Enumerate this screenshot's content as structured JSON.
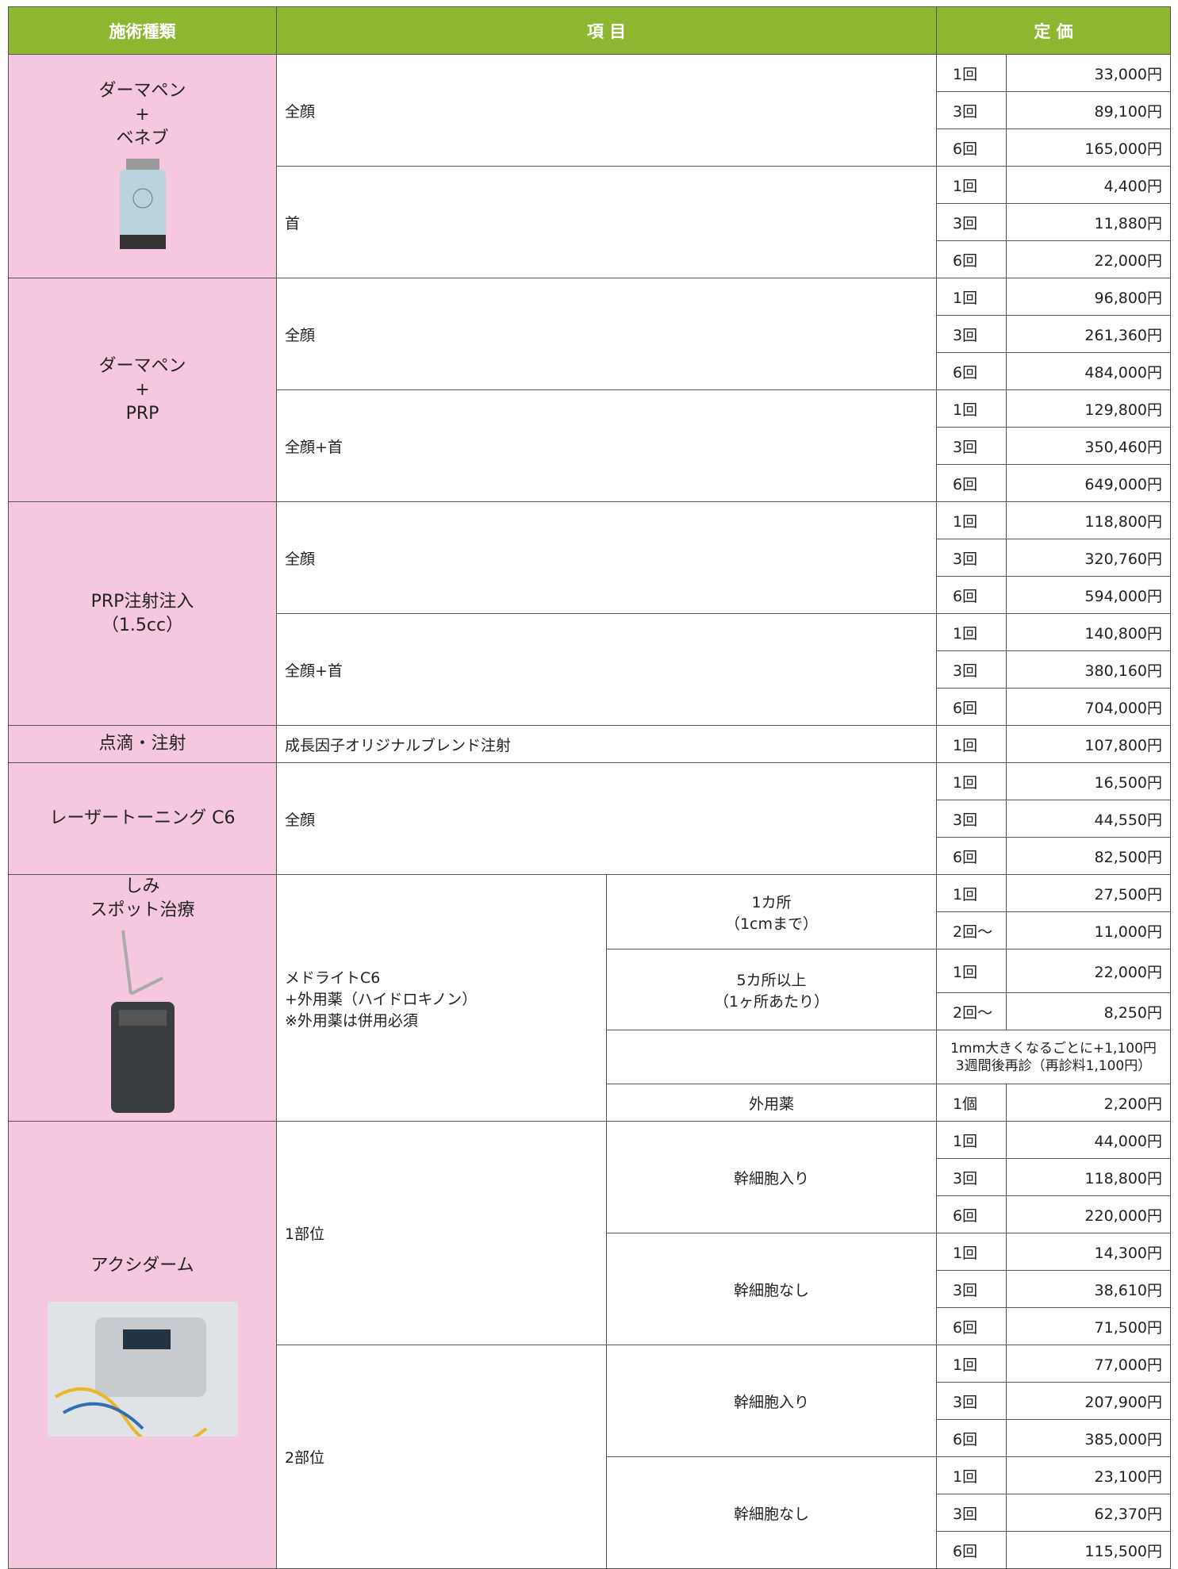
{
  "header": [
    "施術種類",
    "項 目",
    "定 価"
  ],
  "sections": [
    {
      "type": [
        "ダーマペン",
        "+",
        "ベネブ"
      ],
      "items": [
        {
          "name": "全顔",
          "subs": [
            {
              "rows": [
                {
                  "count": "1回",
                  "price": "33,000円"
                },
                {
                  "count": "3回",
                  "price": "89,100円"
                },
                {
                  "count": "6回",
                  "price": "165,000円"
                }
              ]
            }
          ]
        },
        {
          "name": "首",
          "subs": [
            {
              "rows": [
                {
                  "count": "1回",
                  "price": "4,400円"
                },
                {
                  "count": "3回",
                  "price": "11,880円"
                },
                {
                  "count": "6回",
                  "price": "22,000円"
                }
              ]
            }
          ]
        }
      ]
    },
    {
      "type": [
        "ダーマペン",
        "+",
        "PRP"
      ],
      "items": [
        {
          "name": "全顔",
          "subs": [
            {
              "rows": [
                {
                  "count": "1回",
                  "price": "96,800円"
                },
                {
                  "count": "3回",
                  "price": "261,360円"
                },
                {
                  "count": "6回",
                  "price": "484,000円"
                }
              ]
            }
          ]
        },
        {
          "name": "全顔+首",
          "subs": [
            {
              "rows": [
                {
                  "count": "1回",
                  "price": "129,800円"
                },
                {
                  "count": "3回",
                  "price": "350,460円"
                },
                {
                  "count": "6回",
                  "price": "649,000円"
                }
              ]
            }
          ]
        }
      ]
    },
    {
      "type": [
        "PRP注射注入",
        "（1.5cc）"
      ],
      "items": [
        {
          "name": "全顔",
          "subs": [
            {
              "rows": [
                {
                  "count": "1回",
                  "price": "118,800円"
                },
                {
                  "count": "3回",
                  "price": "320,760円"
                },
                {
                  "count": "6回",
                  "price": "594,000円"
                }
              ]
            }
          ]
        },
        {
          "name": "全顔+首",
          "subs": [
            {
              "rows": [
                {
                  "count": "1回",
                  "price": "140,800円"
                },
                {
                  "count": "3回",
                  "price": "380,160円"
                },
                {
                  "count": "6回",
                  "price": "704,000円"
                }
              ]
            }
          ]
        }
      ]
    },
    {
      "type": [
        "点滴・注射"
      ],
      "items": [
        {
          "name": "成長因子オリジナルブレンド注射",
          "subs": [
            {
              "rows": [
                {
                  "count": "1回",
                  "price": "107,800円"
                }
              ]
            }
          ]
        }
      ]
    },
    {
      "type": [
        "レーザートーニング C6"
      ],
      "items": [
        {
          "name": "全顔",
          "subs": [
            {
              "rows": [
                {
                  "count": "1回",
                  "price": "16,500円"
                },
                {
                  "count": "3回",
                  "price": "44,550円"
                },
                {
                  "count": "6回",
                  "price": "82,500円"
                }
              ]
            }
          ]
        }
      ]
    },
    {
      "type": [
        "しみ",
        "スポット治療"
      ],
      "items": [
        {
          "name": [
            "メドライトC6",
            "+外用薬（ハイドロキノン）",
            "※外用薬は併用必須"
          ],
          "subs": [
            {
              "name": [
                "1カ所",
                "（1cmまで）"
              ],
              "rows": [
                {
                  "count": "1回",
                  "price": "27,500円"
                },
                {
                  "count": "2回～",
                  "price": "11,000円"
                }
              ]
            },
            {
              "name": [
                "5カ所以上",
                "（1ヶ所あたり）"
              ],
              "rows": [
                {
                  "count": "1回",
                  "price": "22,000円"
                },
                {
                  "count": "2回～",
                  "price": "8,250円"
                }
              ]
            },
            {
              "rows": [
                {
                  "note": [
                    "1mm大きくなるごとに+1,100円",
                    "3週間後再診（再診料1,100円）"
                  ]
                }
              ]
            },
            {
              "name": "外用薬",
              "rows": [
                {
                  "count": "1個",
                  "price": "2,200円"
                }
              ]
            }
          ]
        }
      ]
    },
    {
      "type": [
        "アクシダーム"
      ],
      "items": [
        {
          "name": "1部位",
          "subs": [
            {
              "name": "幹細胞入り",
              "rows": [
                {
                  "count": "1回",
                  "price": "44,000円"
                },
                {
                  "count": "3回",
                  "price": "118,800円"
                },
                {
                  "count": "6回",
                  "price": "220,000円"
                }
              ]
            },
            {
              "name": "幹細胞なし",
              "rows": [
                {
                  "count": "1回",
                  "price": "14,300円"
                },
                {
                  "count": "3回",
                  "price": "38,610円"
                },
                {
                  "count": "6回",
                  "price": "71,500円"
                }
              ]
            }
          ]
        },
        {
          "name": "2部位",
          "subs": [
            {
              "name": "幹細胞入り",
              "rows": [
                {
                  "count": "1回",
                  "price": "77,000円"
                },
                {
                  "count": "3回",
                  "price": "207,900円"
                },
                {
                  "count": "6回",
                  "price": "385,000円"
                }
              ]
            },
            {
              "name": "幹細胞なし",
              "rows": [
                {
                  "count": "1回",
                  "price": "23,100円"
                },
                {
                  "count": "3回",
                  "price": "62,370円"
                },
                {
                  "count": "6回",
                  "price": "115,500円"
                }
              ]
            }
          ]
        }
      ]
    }
  ]
}
